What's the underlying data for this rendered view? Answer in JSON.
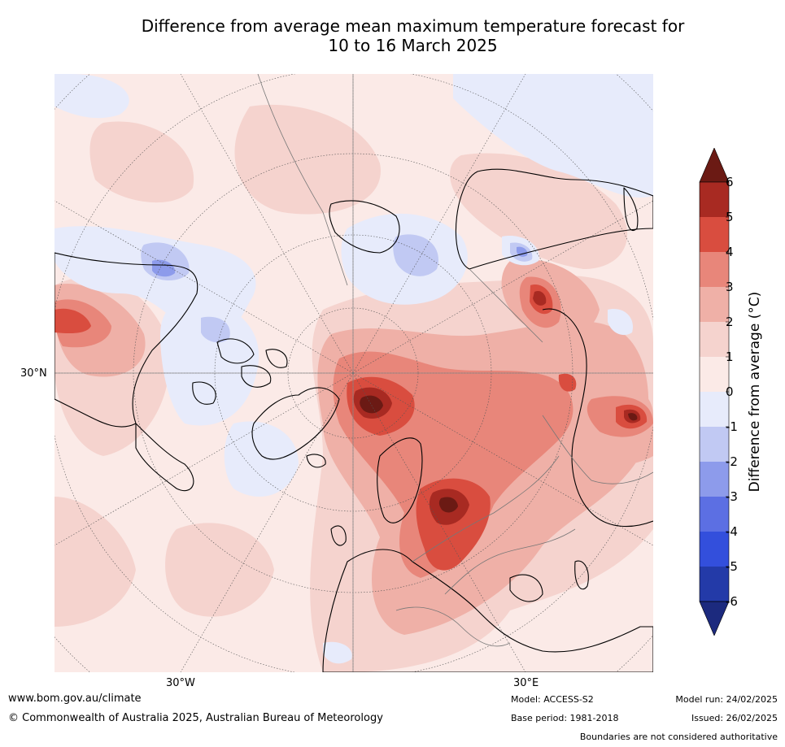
{
  "title_line1": "Difference from average mean maximum temperature forecast for",
  "title_line2": "10 to 16 March 2025",
  "map": {
    "lat_label": "30°N",
    "lon_labels": [
      "30°W",
      "30°E"
    ],
    "projection_note": "north polar stereographic",
    "gridlines": true
  },
  "colorbar": {
    "label": "Difference from average (°C)",
    "ticks": [
      "6",
      "5",
      "4",
      "3",
      "2",
      "1",
      "0",
      "-1",
      "-2",
      "-3",
      "-4",
      "-5",
      "-6"
    ],
    "colors": {
      "above_6": "#6b1a14",
      "5_6": "#a82a22",
      "4_5": "#d94d3f",
      "3_4": "#e8867a",
      "2_3": "#efb0a7",
      "1_2": "#f5d3ce",
      "0_1": "#fbeae7",
      "m1_0": "#e7ebfb",
      "m2_m1": "#c1c9f3",
      "m3_m2": "#8d9beb",
      "m4_m3": "#5c6fe3",
      "m5_m4": "#334fdc",
      "m6_m5": "#233aa8",
      "below_m6": "#1c2a7e"
    }
  },
  "footer": {
    "website": "www.bom.gov.au/climate",
    "copyright": "© Commonwealth of Australia 2025, Australian Bureau of Meteorology",
    "model": "Model: ACCESS-S2",
    "base_period": "Base period: 1981-2018",
    "model_run": "Model run: 24/02/2025",
    "issued": "Issued: 26/02/2025",
    "disclaimer": "Boundaries are not considered authoritative"
  }
}
